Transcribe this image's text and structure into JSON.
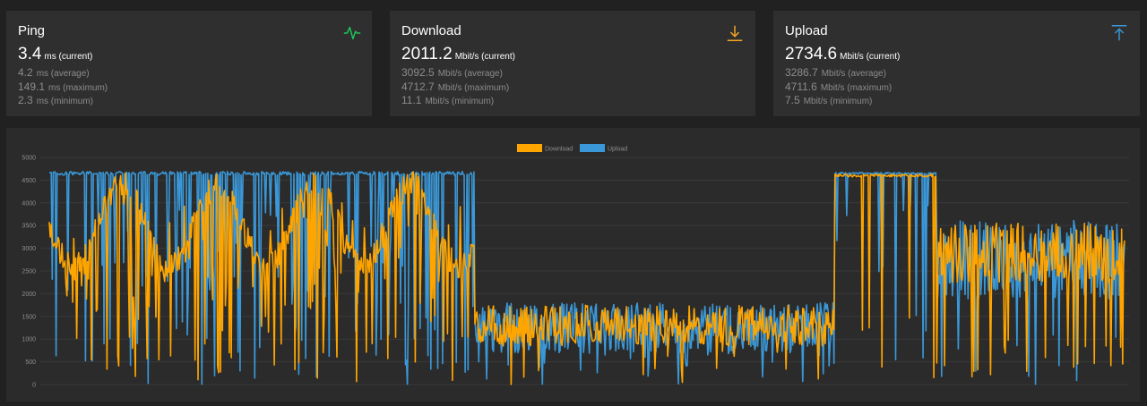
{
  "cards": [
    {
      "title": "Ping",
      "icon": "activity-icon",
      "icon_color": "#1ec55a",
      "current": {
        "value": "3.4",
        "unit": "ms (current)"
      },
      "average": {
        "value": "4.2",
        "unit": "ms (average)"
      },
      "maximum": {
        "value": "149.1",
        "unit": "ms (maximum)"
      },
      "minimum": {
        "value": "2.3",
        "unit": "ms (minimum)"
      }
    },
    {
      "title": "Download",
      "icon": "download-icon",
      "icon_color": "#f5a623",
      "current": {
        "value": "2011.2",
        "unit": "Mbit/s (current)"
      },
      "average": {
        "value": "3092.5",
        "unit": "Mbit/s (average)"
      },
      "maximum": {
        "value": "4712.7",
        "unit": "Mbit/s (maximum)"
      },
      "minimum": {
        "value": "11.1",
        "unit": "Mbit/s (minimum)"
      }
    },
    {
      "title": "Upload",
      "icon": "upload-icon",
      "icon_color": "#3b97d3",
      "current": {
        "value": "2734.6",
        "unit": "Mbit/s (current)"
      },
      "average": {
        "value": "3286.7",
        "unit": "Mbit/s (average)"
      },
      "maximum": {
        "value": "4711.6",
        "unit": "Mbit/s (maximum)"
      },
      "minimum": {
        "value": "7.5",
        "unit": "Mbit/s (minimum)"
      }
    }
  ],
  "chart_data": {
    "type": "line",
    "series": [
      {
        "name": "Download",
        "color": "#ffa500"
      },
      {
        "name": "Upload",
        "color": "#3a98d8"
      }
    ],
    "legend_position": "top-center",
    "ylim": [
      0,
      5000
    ],
    "yticks": [
      5000,
      4500,
      4000,
      3500,
      3000,
      2500,
      2000,
      1500,
      1000,
      500,
      0
    ],
    "grid": true,
    "segments": [
      {
        "range": [
          0.0,
          0.395
        ],
        "upload_level": 4650,
        "download_level": 3400,
        "pattern": "saturated"
      },
      {
        "range": [
          0.395,
          0.73
        ],
        "upload_level": 1250,
        "download_level": 1300,
        "pattern": "low"
      },
      {
        "range": [
          0.73,
          0.825
        ],
        "upload_level": 4650,
        "download_level": 4600,
        "pattern": "flat-high"
      },
      {
        "range": [
          0.825,
          1.0
        ],
        "upload_level": 2750,
        "download_level": 2900,
        "pattern": "mid"
      }
    ]
  }
}
